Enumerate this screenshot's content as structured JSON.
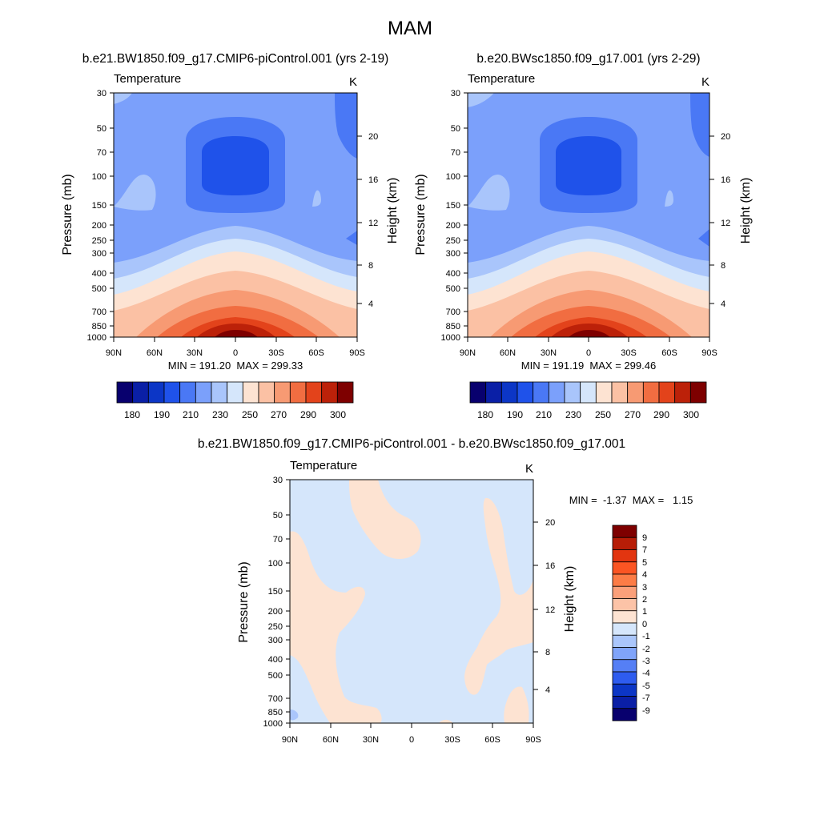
{
  "page_title": "MAM",
  "chart_data": [
    {
      "type": "heatmap",
      "title": "b.e21.BW1850.f09_g17.CMIP6-piControl.001 (yrs 2-19)",
      "subtitle_left": "Temperature",
      "units": "K",
      "xlabel": "",
      "ylabel": "Pressure (mb)",
      "ylabel_right": "Height (km)",
      "x_ticks": [
        "90N",
        "60N",
        "30N",
        "0",
        "30S",
        "60S",
        "90S"
      ],
      "y_ticks": [
        "30",
        "50",
        "70",
        "100",
        "150",
        "200",
        "250",
        "300",
        "400",
        "500",
        "700",
        "850",
        "1000"
      ],
      "y_right_ticks": [
        "20",
        "16",
        "12",
        "8",
        "4"
      ],
      "stats_text": "MIN = 191.20  MAX = 299.33",
      "min": 191.2,
      "max": 299.33,
      "colorbar_labels": [
        "180",
        "190",
        "210",
        "230",
        "250",
        "270",
        "290",
        "300"
      ]
    },
    {
      "type": "heatmap",
      "title": "b.e20.BWsc1850.f09_g17.001 (yrs 2-29)",
      "subtitle_left": "Temperature",
      "units": "K",
      "xlabel": "",
      "ylabel": "Pressure (mb)",
      "ylabel_right": "Height (km)",
      "x_ticks": [
        "90N",
        "60N",
        "30N",
        "0",
        "30S",
        "60S",
        "90S"
      ],
      "y_ticks": [
        "30",
        "50",
        "70",
        "100",
        "150",
        "200",
        "250",
        "300",
        "400",
        "500",
        "700",
        "850",
        "1000"
      ],
      "y_right_ticks": [
        "20",
        "16",
        "12",
        "8",
        "4"
      ],
      "stats_text": "MIN = 191.19  MAX = 299.46",
      "min": 191.19,
      "max": 299.46,
      "colorbar_labels": [
        "180",
        "190",
        "210",
        "230",
        "250",
        "270",
        "290",
        "300"
      ]
    },
    {
      "type": "heatmap",
      "title": "b.e21.BW1850.f09_g17.CMIP6-piControl.001 - b.e20.BWsc1850.f09_g17.001",
      "subtitle_left": "Temperature",
      "units": "K",
      "xlabel": "",
      "ylabel": "Pressure (mb)",
      "ylabel_right": "Height (km)",
      "x_ticks": [
        "90N",
        "60N",
        "30N",
        "0",
        "30S",
        "60S",
        "90S"
      ],
      "y_ticks": [
        "30",
        "50",
        "70",
        "100",
        "150",
        "200",
        "250",
        "300",
        "400",
        "500",
        "700",
        "850",
        "1000"
      ],
      "y_right_ticks": [
        "20",
        "16",
        "12",
        "8",
        "4"
      ],
      "stats_text": "MIN =  -1.37  MAX =   1.15",
      "min": -1.37,
      "max": 1.15,
      "colorbar_labels": [
        "9",
        "7",
        "5",
        "4",
        "3",
        "2",
        "1",
        "0",
        "-1",
        "-2",
        "-3",
        "-4",
        "-5",
        "-7",
        "-9"
      ]
    }
  ],
  "colors": {
    "abs_scale": [
      "#08006e",
      "#0a1fa6",
      "#0c36c6",
      "#1f52ea",
      "#4a78f5",
      "#7ba0fb",
      "#a9c5fb",
      "#d5e6fb",
      "#fde3d2",
      "#fbc1a4",
      "#f79a73",
      "#f16d41",
      "#e3431b",
      "#bc2109",
      "#7e0000"
    ],
    "diff_scale": [
      "#7e0000",
      "#b71d07",
      "#e23510",
      "#fb5523",
      "#fc7c46",
      "#fba07a",
      "#fcc3a7",
      "#fde3d2",
      "#d5e6fb",
      "#aac6fb",
      "#80a4fa",
      "#557ff5",
      "#2e5cef",
      "#0c36c6",
      "#0a1fa6",
      "#08006e"
    ],
    "text": "#000000",
    "frame": "#000000"
  }
}
